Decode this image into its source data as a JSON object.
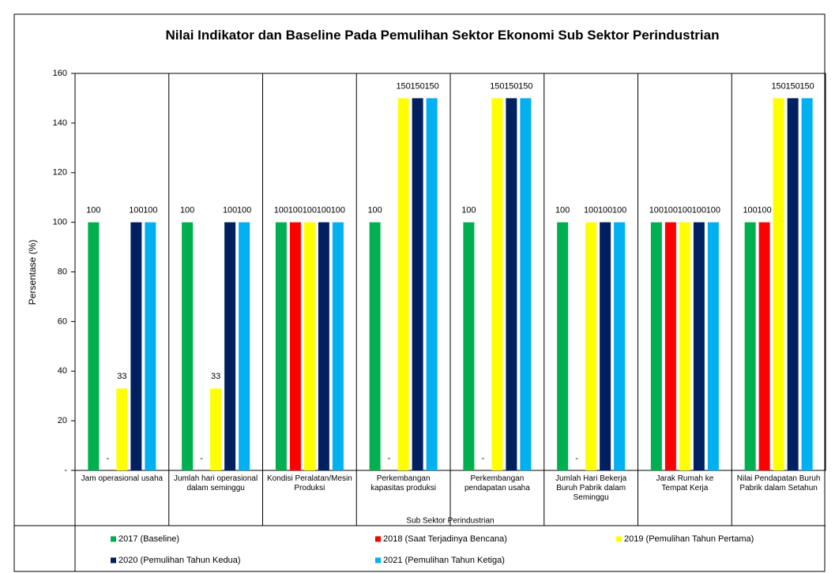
{
  "chart_data": {
    "type": "bar",
    "title": "Nilai Indikator dan Baseline Pada Pemulihan Sektor Ekonomi Sub Sektor Perindustrian",
    "y_label": "Persentase (%)",
    "x_label": "Sub Sektor Perindustrian",
    "categories": [
      "Jam operasional usaha",
      "Jumlah hari operasional dalam seminggu",
      "Kondisi Peralatan/Mesin Produksi",
      "Perkembangan kapasitas produksi",
      "Perkembangan pendapatan usaha",
      "Jumlah Hari Bekerja Buruh Pabrik dalam Seminggu",
      "Jarak Rumah ke Tempat Kerja",
      "Nilai Pendapatan Buruh Pabrik dalam Setahun"
    ],
    "series": [
      {
        "name": "2017 (Baseline)",
        "color": "#00b050",
        "values": [
          100,
          100,
          100,
          100,
          100,
          100,
          100,
          100
        ]
      },
      {
        "name": "2018 (Saat Terjadinya Bencana)",
        "color": "#ff0000",
        "values": [
          0,
          0,
          100,
          0,
          0,
          0,
          100,
          100
        ],
        "value_labels": [
          "-",
          "-",
          "100",
          "-",
          "-",
          "-",
          "100",
          "100"
        ]
      },
      {
        "name": "2019 (Pemulihan Tahun Pertama)",
        "color": "#ffff00",
        "values": [
          33,
          33,
          100,
          150,
          150,
          100,
          100,
          150
        ]
      },
      {
        "name": "2020 (Pemulihan Tahun Kedua)",
        "color": "#002060",
        "values": [
          100,
          100,
          100,
          150,
          150,
          100,
          100,
          150
        ]
      },
      {
        "name": "2021 (Pemulihan Tahun Ketiga)",
        "color": "#00b0f0",
        "values": [
          100,
          100,
          100,
          150,
          150,
          100,
          100,
          150
        ]
      }
    ],
    "ylim": [
      0,
      160
    ],
    "yticks": [
      {
        "value": 0,
        "label": "-"
      },
      20,
      40,
      60,
      80,
      100,
      120,
      140,
      160
    ],
    "grid": false
  }
}
